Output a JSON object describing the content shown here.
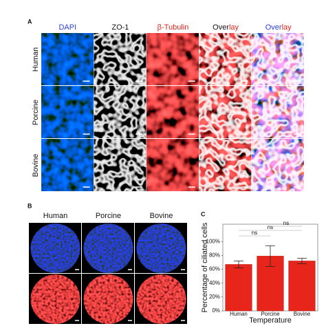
{
  "panel_a": {
    "label": "A",
    "columns": [
      "DAPI",
      "ZO-1",
      "β-Tubulin",
      "Overlay",
      "Overlay"
    ],
    "rows": [
      "Human",
      "Porcine",
      "Bovine"
    ]
  },
  "panel_b": {
    "label": "B",
    "columns": [
      "Human",
      "Porcine",
      "Bovine"
    ]
  },
  "panel_c": {
    "label": "C"
  },
  "chart_data": {
    "type": "bar",
    "categories": [
      "Human",
      "Porcine",
      "Bovine"
    ],
    "values": [
      67,
      79,
      72
    ],
    "errors": [
      5,
      15,
      4
    ],
    "color": "#e8251b",
    "ylabel": "Percentage of ciliated cells",
    "xlabel": "Temperature",
    "ylim": [
      0,
      125
    ],
    "yticks": [
      {
        "value": 0,
        "label": "0%"
      },
      {
        "value": 20,
        "label": "20%"
      },
      {
        "value": 40,
        "label": "40%"
      },
      {
        "value": 60,
        "label": "60%"
      },
      {
        "value": 80,
        "label": "80%"
      },
      {
        "value": 100,
        "label": "100%"
      }
    ],
    "annotations": [
      "ns",
      "ns",
      "ns"
    ]
  }
}
